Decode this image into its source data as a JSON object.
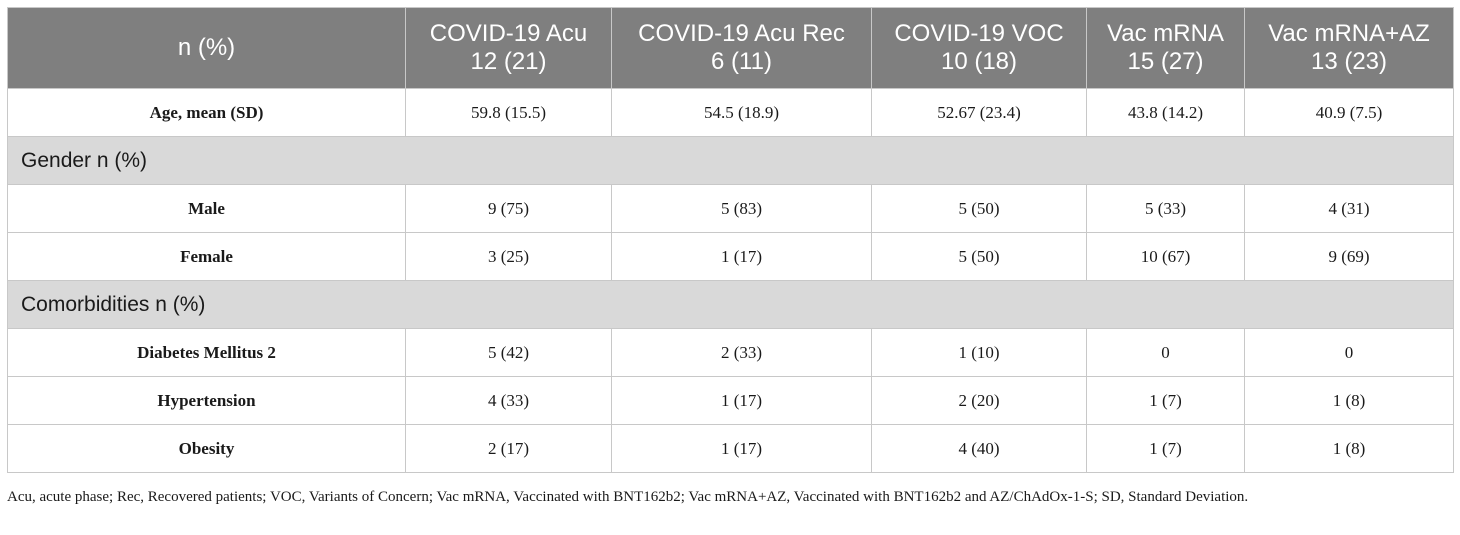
{
  "table": {
    "header": {
      "label": "n (%)",
      "columns": [
        {
          "name": "COVID-19 Acu",
          "count": "12 (21)"
        },
        {
          "name": "COVID-19 Acu Rec",
          "count": "6 (11)"
        },
        {
          "name": "COVID-19 VOC",
          "count": "10 (18)"
        },
        {
          "name": "Vac mRNA",
          "count": "15 (27)"
        },
        {
          "name": "Vac mRNA+AZ",
          "count": "13 (23)"
        }
      ]
    },
    "age_row": {
      "label": "Age, mean (SD)",
      "values": [
        "59.8 (15.5)",
        "54.5 (18.9)",
        "52.67 (23.4)",
        "43.8 (14.2)",
        "40.9 (7.5)"
      ]
    },
    "gender": {
      "title": "Gender n (%)",
      "rows": [
        {
          "label": "Male",
          "values": [
            "9 (75)",
            "5 (83)",
            "5 (50)",
            "5 (33)",
            "4 (31)"
          ]
        },
        {
          "label": "Female",
          "values": [
            "3 (25)",
            "1 (17)",
            "5 (50)",
            "10 (67)",
            "9 (69)"
          ]
        }
      ]
    },
    "comorbidities": {
      "title": "Comorbidities n (%)",
      "rows": [
        {
          "label": "Diabetes Mellitus 2",
          "values": [
            "5 (42)",
            "2 (33)",
            "1 (10)",
            "0",
            "0"
          ]
        },
        {
          "label": "Hypertension",
          "values": [
            "4 (33)",
            "1 (17)",
            "2 (20)",
            "1 (7)",
            "1 (8)"
          ]
        },
        {
          "label": "Obesity",
          "values": [
            "2 (17)",
            "1 (17)",
            "4 (40)",
            "1 (7)",
            "1 (8)"
          ]
        }
      ]
    }
  },
  "footnote": "Acu, acute phase; Rec, Recovered patients; VOC, Variants of Concern; Vac mRNA, Vaccinated with BNT162b2; Vac mRNA+AZ, Vaccinated with BNT162b2 and AZ/ChAdOx-1-S; SD, Standard Deviation.",
  "colors": {
    "header_bg": "#7f7f7f",
    "section_bg": "#d9d9d9",
    "border": "#c8c8c8"
  }
}
